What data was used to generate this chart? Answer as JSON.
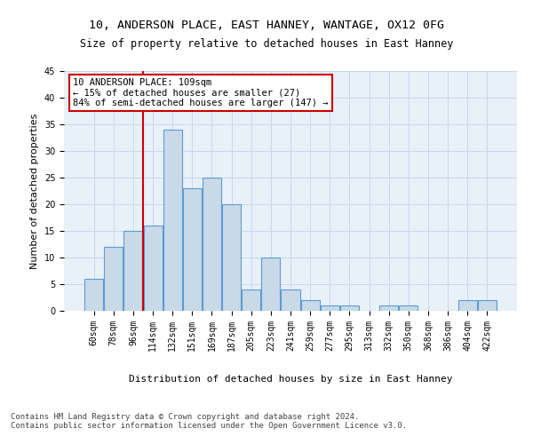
{
  "title1": "10, ANDERSON PLACE, EAST HANNEY, WANTAGE, OX12 0FG",
  "title2": "Size of property relative to detached houses in East Hanney",
  "xlabel": "Distribution of detached houses by size in East Hanney",
  "ylabel": "Number of detached properties",
  "bin_labels": [
    "60sqm",
    "78sqm",
    "96sqm",
    "114sqm",
    "132sqm",
    "151sqm",
    "169sqm",
    "187sqm",
    "205sqm",
    "223sqm",
    "241sqm",
    "259sqm",
    "277sqm",
    "295sqm",
    "313sqm",
    "332sqm",
    "350sqm",
    "368sqm",
    "386sqm",
    "404sqm",
    "422sqm"
  ],
  "values": [
    6,
    12,
    15,
    16,
    34,
    23,
    25,
    20,
    4,
    10,
    4,
    2,
    1,
    1,
    0,
    1,
    1,
    0,
    0,
    2,
    2
  ],
  "bar_facecolor": "#c9d9e8",
  "bar_edgecolor": "#5b9bd5",
  "bar_linewidth": 0.8,
  "grid_color": "#c8d8e8",
  "bg_color": "#e8f0f8",
  "property_line_color": "#cc0000",
  "annotation_text": "10 ANDERSON PLACE: 109sqm\n← 15% of detached houses are smaller (27)\n84% of semi-detached houses are larger (147) →",
  "annotation_box_edgecolor": "#cc0000",
  "ylim": [
    0,
    45
  ],
  "yticks": [
    0,
    5,
    10,
    15,
    20,
    25,
    30,
    35,
    40,
    45
  ],
  "footer_text": "Contains HM Land Registry data © Crown copyright and database right 2024.\nContains public sector information licensed under the Open Government Licence v3.0.",
  "title_fontsize": 9.5,
  "subtitle_fontsize": 8.5,
  "axis_label_fontsize": 8,
  "tick_fontsize": 7,
  "annotation_fontsize": 7.5,
  "footer_fontsize": 6.5
}
